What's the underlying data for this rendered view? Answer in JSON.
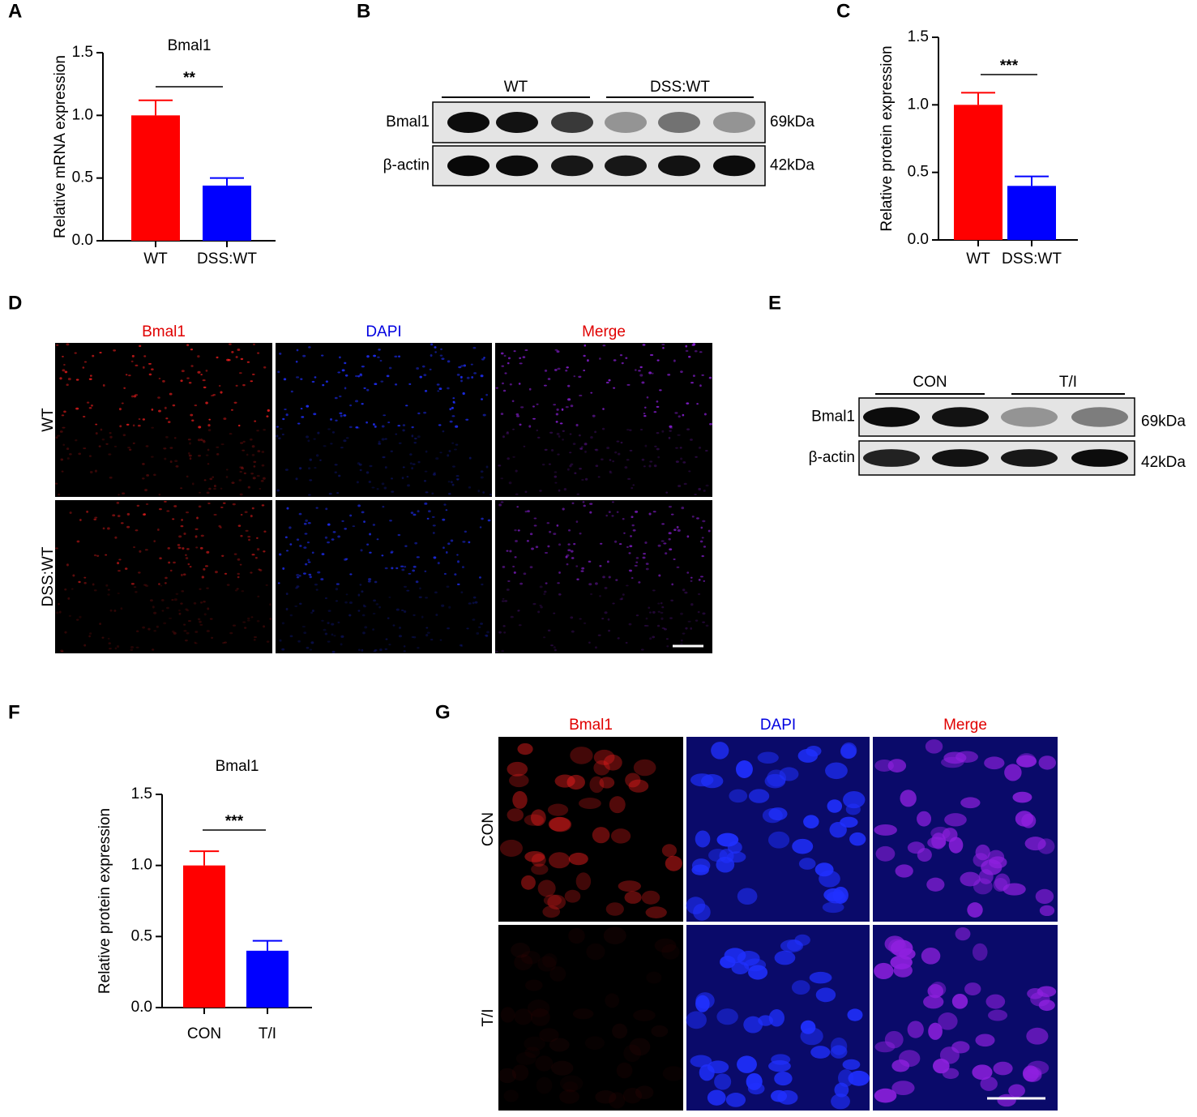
{
  "chart_data": [
    {
      "type": "bar",
      "panel": "A",
      "title": "Bmal1",
      "ylabel": "Relative mRNA expression",
      "categories": [
        "WT",
        "DSS:WT"
      ],
      "values": [
        1.0,
        0.44
      ],
      "errors": [
        0.12,
        0.06
      ],
      "colors": [
        "#ff0000",
        "#0000ff"
      ],
      "ylim": [
        0,
        1.5
      ],
      "yticks": [
        {
          "value": 0,
          "label": "0.0"
        },
        0.5,
        {
          "value": 1,
          "label": "1.0"
        },
        1.5
      ],
      "significance": "**"
    },
    {
      "type": "bar",
      "panel": "C",
      "ylabel": "Relative protein expression",
      "categories": [
        "WT",
        "DSS:WT"
      ],
      "values": [
        1.0,
        0.4
      ],
      "errors": [
        0.09,
        0.07
      ],
      "colors": [
        "#ff0000",
        "#0000ff"
      ],
      "ylim": [
        0,
        1.5
      ],
      "yticks": [
        {
          "value": 0,
          "label": "0.0"
        },
        0.5,
        {
          "value": 1,
          "label": "1.0"
        },
        1.5
      ],
      "significance": "***"
    },
    {
      "type": "bar",
      "panel": "F",
      "title": "Bmal1",
      "ylabel": "Relative  protein expression",
      "categories": [
        "CON",
        "T/I"
      ],
      "values": [
        1.0,
        0.4
      ],
      "errors": [
        0.1,
        0.07
      ],
      "colors": [
        "#ff0000",
        "#0000ff"
      ],
      "ylim": [
        0,
        1.5
      ],
      "yticks": [
        {
          "value": 0,
          "label": "0.0"
        },
        0.5,
        {
          "value": 1,
          "label": "1.0"
        },
        1.5
      ],
      "significance": "***"
    }
  ],
  "blots": [
    {
      "panel": "B",
      "groups": [
        "WT",
        "DSS:WT"
      ],
      "rows": [
        {
          "label": "Bmal1",
          "size": "69kDa"
        },
        {
          "label": "β-actin",
          "size": "42kDa"
        }
      ]
    },
    {
      "panel": "E",
      "groups": [
        "CON",
        "T/I"
      ],
      "rows": [
        {
          "label": "Bmal1",
          "size": "69kDa"
        },
        {
          "label": "β-actin",
          "size": "42kDa"
        }
      ]
    }
  ],
  "images": [
    {
      "panel": "D",
      "columns": [
        "Bmal1",
        "DAPI",
        "Merge"
      ],
      "rows": [
        "WT",
        "DSS:WT"
      ]
    },
    {
      "panel": "G",
      "columns": [
        "Bmal1",
        "DAPI",
        "Merge"
      ],
      "rows": [
        "CON",
        "T/I"
      ]
    }
  ]
}
